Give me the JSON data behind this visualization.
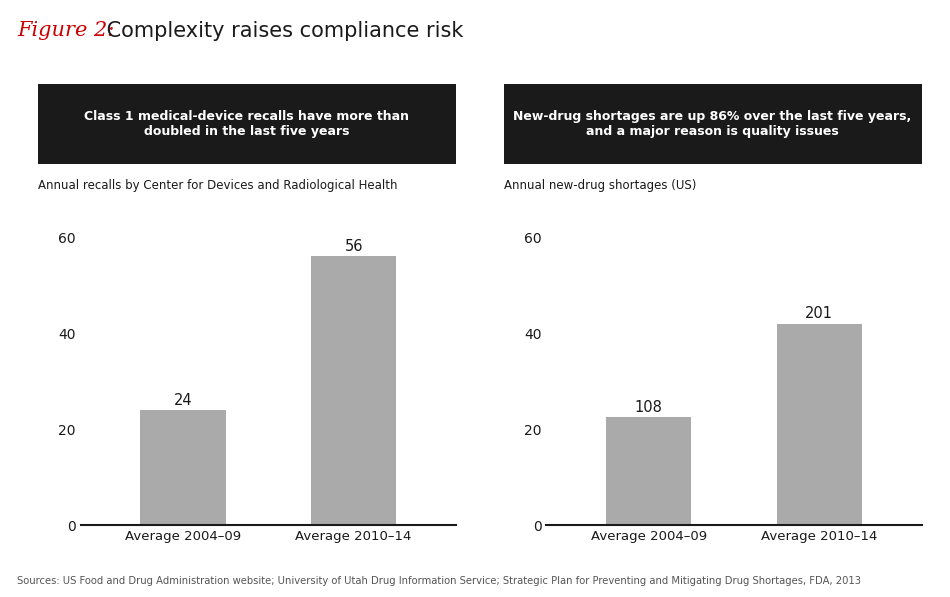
{
  "figure_label": "Figure 2:",
  "figure_title": " Complexity raises compliance risk",
  "figure_label_color": "#cc0000",
  "figure_title_color": "#1a1a1a",
  "chart1": {
    "header": "Class 1 medical-device recalls have more than\ndoubled in the last five years",
    "subtitle": "Annual recalls by Center for Devices and Radiological Health",
    "categories": [
      "Average 2004–09",
      "Average 2010–14"
    ],
    "values": [
      24,
      56
    ],
    "ylim": [
      0,
      65
    ],
    "yticks": [
      0,
      20,
      40,
      60
    ],
    "bar_color": "#aaaaaa"
  },
  "chart2": {
    "header": "New-drug shortages are up 86% over the last five years,\nand a major reason is quality issues",
    "subtitle": "Annual new-drug shortages (US)",
    "categories": [
      "Average 2004–09",
      "Average 2010–14"
    ],
    "values": [
      108,
      201
    ],
    "ylim": [
      0,
      240
    ],
    "yticks": [
      0,
      20,
      40,
      60
    ],
    "bar_color": "#aaaaaa"
  },
  "header_bg_color": "#1a1a1a",
  "header_text_color": "#ffffff",
  "sources_text": "Sources: US Food and Drug Administration website; University of Utah Drug Information Service; Strategic Plan for Preventing and Mitigating Drug Shortages, FDA, 2013",
  "bg_color": "#ffffff"
}
